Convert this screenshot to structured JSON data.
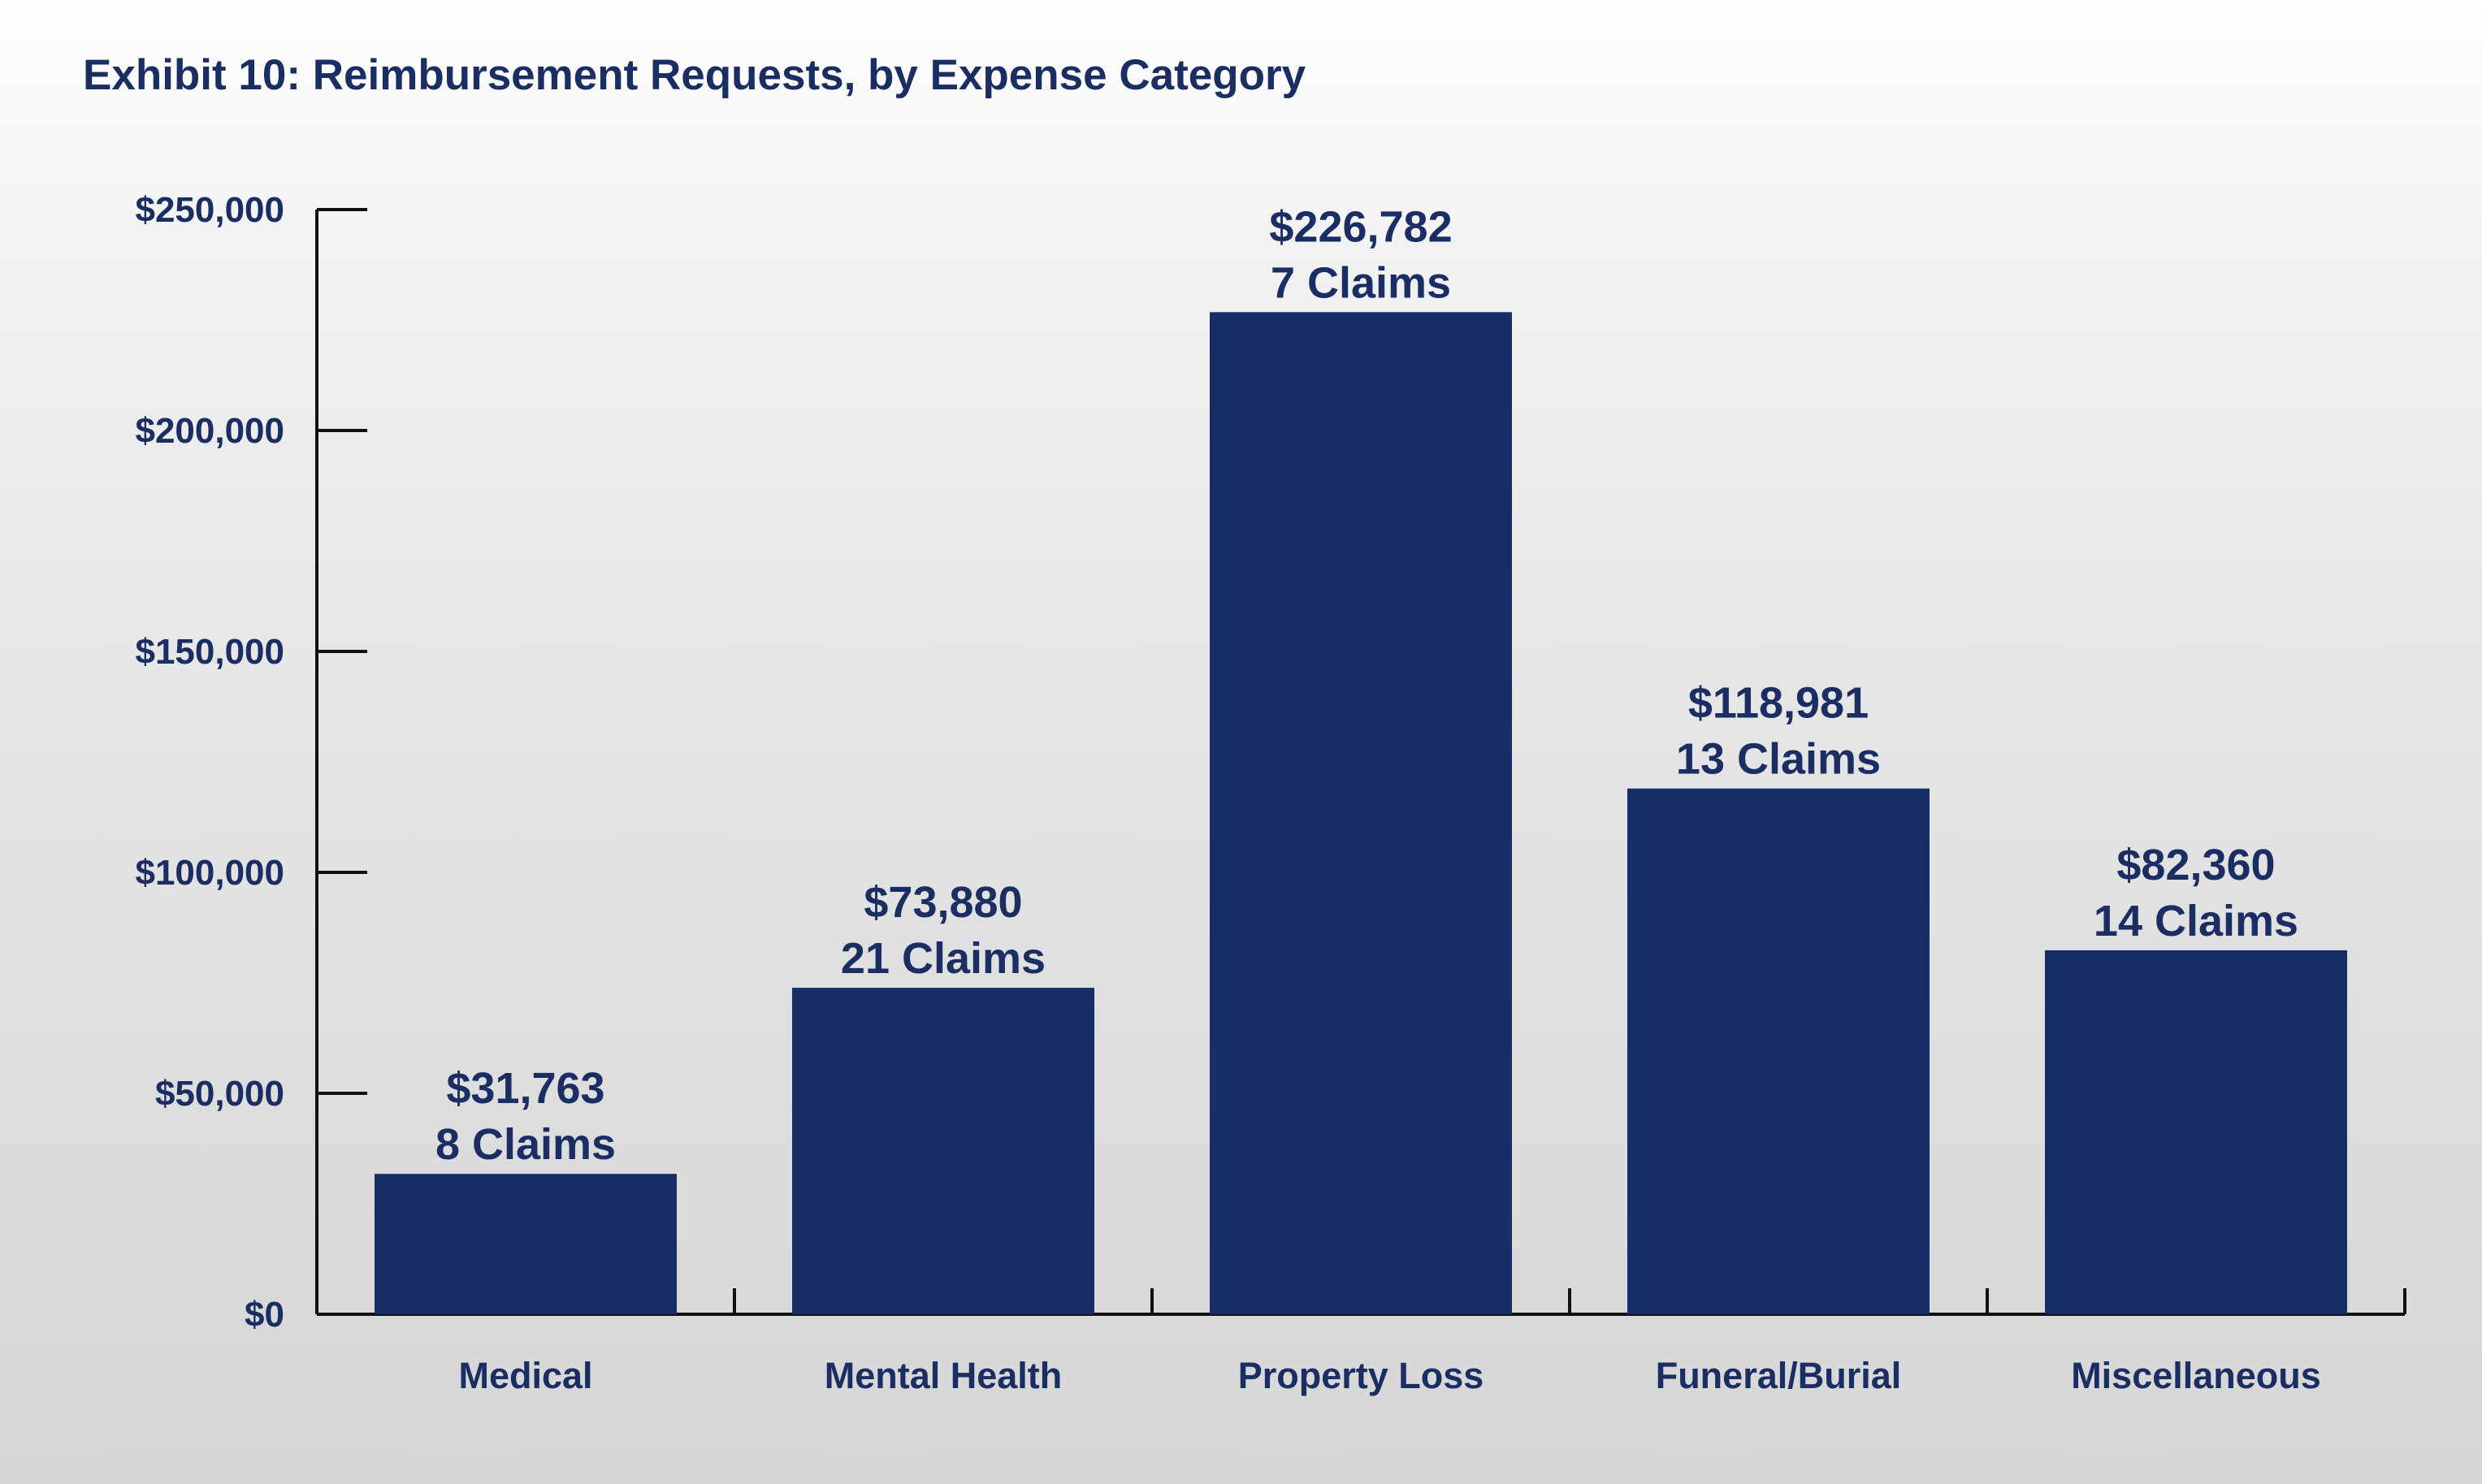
{
  "chart_data": {
    "type": "bar",
    "title": "Exhibit 10: Reimbursement Requests, by Expense Category",
    "xlabel": "",
    "ylabel": "",
    "categories": [
      "Medical",
      "Mental Health",
      "Property Loss",
      "Funeral/Burial",
      "Miscellaneous"
    ],
    "values": [
      31763,
      73880,
      226782,
      118981,
      82360
    ],
    "value_labels": [
      "$31,763",
      "$73,880",
      "$226,782",
      "$118,981",
      "$82,360"
    ],
    "claim_labels": [
      "8 Claims",
      "21 Claims",
      "7 Claims",
      "13 Claims",
      "14 Claims"
    ],
    "ylim": [
      0,
      250000
    ],
    "yticks": [
      0,
      50000,
      100000,
      150000,
      200000,
      250000
    ],
    "ytick_labels": [
      "$0",
      "$50,000",
      "$100,000",
      "$150,000",
      "$200,000",
      "$250,000"
    ],
    "grid": false,
    "legend": "none",
    "bar_color": "#172d66",
    "text_color": "#1a2e63",
    "axis_color": "#111111"
  }
}
